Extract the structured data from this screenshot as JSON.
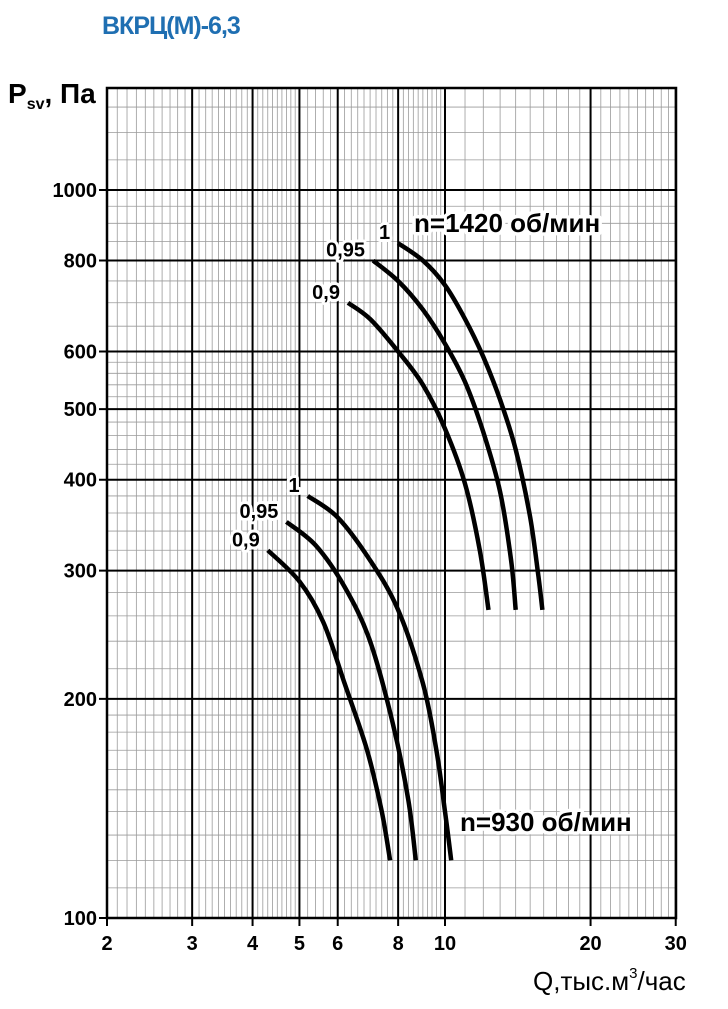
{
  "chart_data": {
    "type": "line",
    "title": "ВКРЦ(М)-6,3",
    "ylabel_main": "P",
    "ylabel_sub": "sv",
    "ylabel_unit": ", Па",
    "xlabel_main": "Q,тыс.м",
    "xlabel_sup": "3",
    "xlabel_tail": "/час",
    "x_scale": "log",
    "y_scale": "log",
    "xlim": [
      2,
      30
    ],
    "ylim": [
      100,
      1500
    ],
    "grid": true,
    "x_ticks": [
      2,
      3,
      4,
      5,
      6,
      8,
      10,
      20,
      30
    ],
    "x_tick_labels": [
      "2",
      "3",
      "4",
      "5",
      "6",
      "8",
      "10",
      "20",
      "30"
    ],
    "y_ticks": [
      100,
      200,
      300,
      400,
      500,
      600,
      800,
      1000
    ],
    "y_tick_labels": [
      "100",
      "200",
      "300",
      "400",
      "500",
      "600",
      "800",
      "1000"
    ],
    "groups": [
      {
        "speed_label": "n=1420 об/мин",
        "series": [
          {
            "name": "1",
            "x": [
              8.0,
              9.0,
              10.0,
              11.0,
              12.0,
              13.0,
              14.0,
              15.0,
              15.6,
              15.9
            ],
            "y": [
              845,
              800,
              740,
              665,
              590,
              515,
              440,
              355,
              295,
              265
            ]
          },
          {
            "name": "0,95",
            "x": [
              7.1,
              8.0,
              9.0,
              10.0,
              11.0,
              12.0,
              13.0,
              13.7,
              14.0
            ],
            "y": [
              800,
              750,
              685,
              615,
              545,
              465,
              385,
              310,
              265
            ]
          },
          {
            "name": "0,9",
            "x": [
              6.3,
              7.0,
              8.0,
              9.0,
              10.0,
              11.0,
              11.8,
              12.3
            ],
            "y": [
              700,
              665,
              600,
              540,
              470,
              395,
              320,
              265
            ]
          }
        ]
      },
      {
        "speed_label": "n=930 об/мин",
        "series": [
          {
            "name": "1",
            "x": [
              5.2,
              6.0,
              7.0,
              8.0,
              9.0,
              9.6,
              10.0,
              10.3
            ],
            "y": [
              380,
              355,
              310,
              265,
              210,
              170,
              140,
              120
            ]
          },
          {
            "name": "0,95",
            "x": [
              4.7,
              5.4,
              6.2,
              7.0,
              7.8,
              8.4,
              8.7
            ],
            "y": [
              350,
              325,
              285,
              240,
              185,
              145,
              120
            ]
          },
          {
            "name": "0,9",
            "x": [
              4.3,
              5.0,
              5.6,
              6.2,
              6.9,
              7.4,
              7.7
            ],
            "y": [
              320,
              290,
              255,
              210,
              170,
              140,
              120
            ]
          }
        ]
      }
    ]
  }
}
